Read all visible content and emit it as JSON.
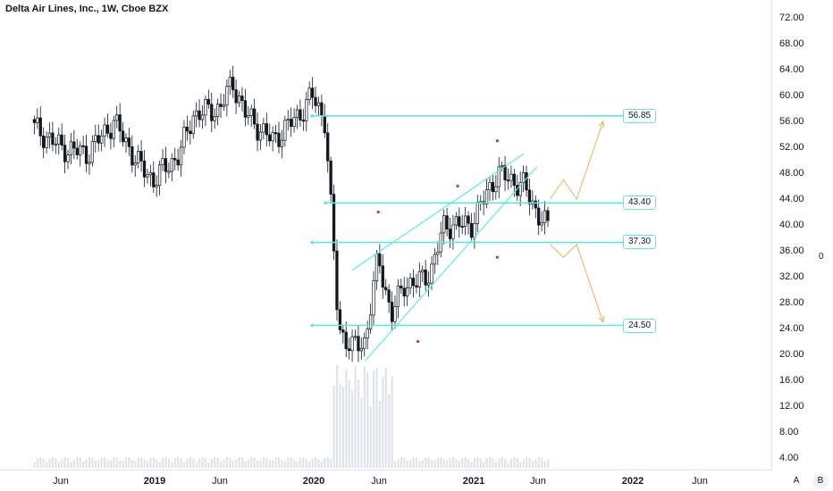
{
  "title": "Delta Air Lines, Inc., 1W, Cboe BZX",
  "colors": {
    "candle": "#131722",
    "level_line": "#5ee7ea",
    "channel_line": "#5ee7ea",
    "forecast_arrow": "#f5b461",
    "marker": "#e0245e",
    "volume": "#e0e3eb"
  },
  "yaxis_labels": [
    "72.00",
    "68.00",
    "64.00",
    "60.00",
    "56.00",
    "52.00",
    "48.00",
    "44.00",
    "40.00",
    "36.00",
    "32.00",
    "28.00",
    "24.00",
    "20.00",
    "16.00",
    "12.00",
    "8.00",
    "4.00"
  ],
  "xaxis_labels": [
    {
      "text": "Jun",
      "bold": false
    },
    {
      "text": "2019",
      "bold": true
    },
    {
      "text": "Jun",
      "bold": false
    },
    {
      "text": "2020",
      "bold": true
    },
    {
      "text": "Jun",
      "bold": false
    },
    {
      "text": "2021",
      "bold": true
    },
    {
      "text": "Jun",
      "bold": false
    },
    {
      "text": "2022",
      "bold": true
    },
    {
      "text": "Jun",
      "bold": false
    }
  ],
  "level_labels": [
    "56.85",
    "43.40",
    "37.30",
    "24.50"
  ],
  "side_zero": "0",
  "scale_buttons": {
    "auto": "A",
    "b": "B"
  },
  "chart_data": {
    "type": "candlestick",
    "interval": "1W",
    "x_range": [
      "2018-04",
      "2022-09"
    ],
    "ylim": [
      4,
      74
    ],
    "grid": false,
    "horizontal_levels": [
      56.85,
      43.4,
      37.3,
      24.5
    ],
    "price_path": [
      [
        "2018-04",
        55
      ],
      [
        "2018-06",
        52
      ],
      [
        "2018-08",
        51
      ],
      [
        "2018-10",
        56
      ],
      [
        "2018-12",
        49
      ],
      [
        "2019-01",
        47
      ],
      [
        "2019-03",
        51
      ],
      [
        "2019-04",
        57
      ],
      [
        "2019-06",
        58
      ],
      [
        "2019-07",
        62
      ],
      [
        "2019-08",
        57
      ],
      [
        "2019-10",
        53
      ],
      [
        "2019-11",
        55
      ],
      [
        "2019-12",
        57
      ],
      [
        "2020-01",
        60
      ],
      [
        "2020-02",
        56
      ],
      [
        "2020-03",
        24
      ],
      [
        "2020-04",
        21
      ],
      [
        "2020-05",
        22
      ],
      [
        "2020-06",
        35
      ],
      [
        "2020-07",
        26
      ],
      [
        "2020-08",
        31
      ],
      [
        "2020-09",
        31
      ],
      [
        "2020-10",
        33
      ],
      [
        "2020-11",
        40
      ],
      [
        "2020-12",
        40
      ],
      [
        "2021-01",
        40
      ],
      [
        "2021-02",
        44
      ],
      [
        "2021-03",
        48
      ],
      [
        "2021-04",
        47
      ],
      [
        "2021-05",
        46
      ],
      [
        "2021-06",
        42
      ],
      [
        "2021-07",
        39
      ]
    ],
    "channel_lines": [
      {
        "from": [
          "2020-04",
          33
        ],
        "to": [
          "2021-05",
          51
        ]
      },
      {
        "from": [
          "2020-05",
          19
        ],
        "to": [
          "2021-06",
          49
        ]
      }
    ],
    "markers": [
      {
        "date": "2020-06",
        "value": 42
      },
      {
        "date": "2020-09",
        "value": 22
      },
      {
        "date": "2020-12",
        "value": 46
      },
      {
        "date": "2021-03",
        "value": 35
      },
      {
        "date": "2021-03",
        "value": 53
      }
    ],
    "forecast_paths": [
      [
        [
          "2021-07",
          44
        ],
        [
          "2021-08",
          47
        ],
        [
          "2021-09",
          44
        ],
        [
          "2021-11",
          56
        ]
      ],
      [
        [
          "2021-07",
          37
        ],
        [
          "2021-08",
          35
        ],
        [
          "2021-09",
          37
        ],
        [
          "2021-11",
          25
        ]
      ]
    ]
  }
}
